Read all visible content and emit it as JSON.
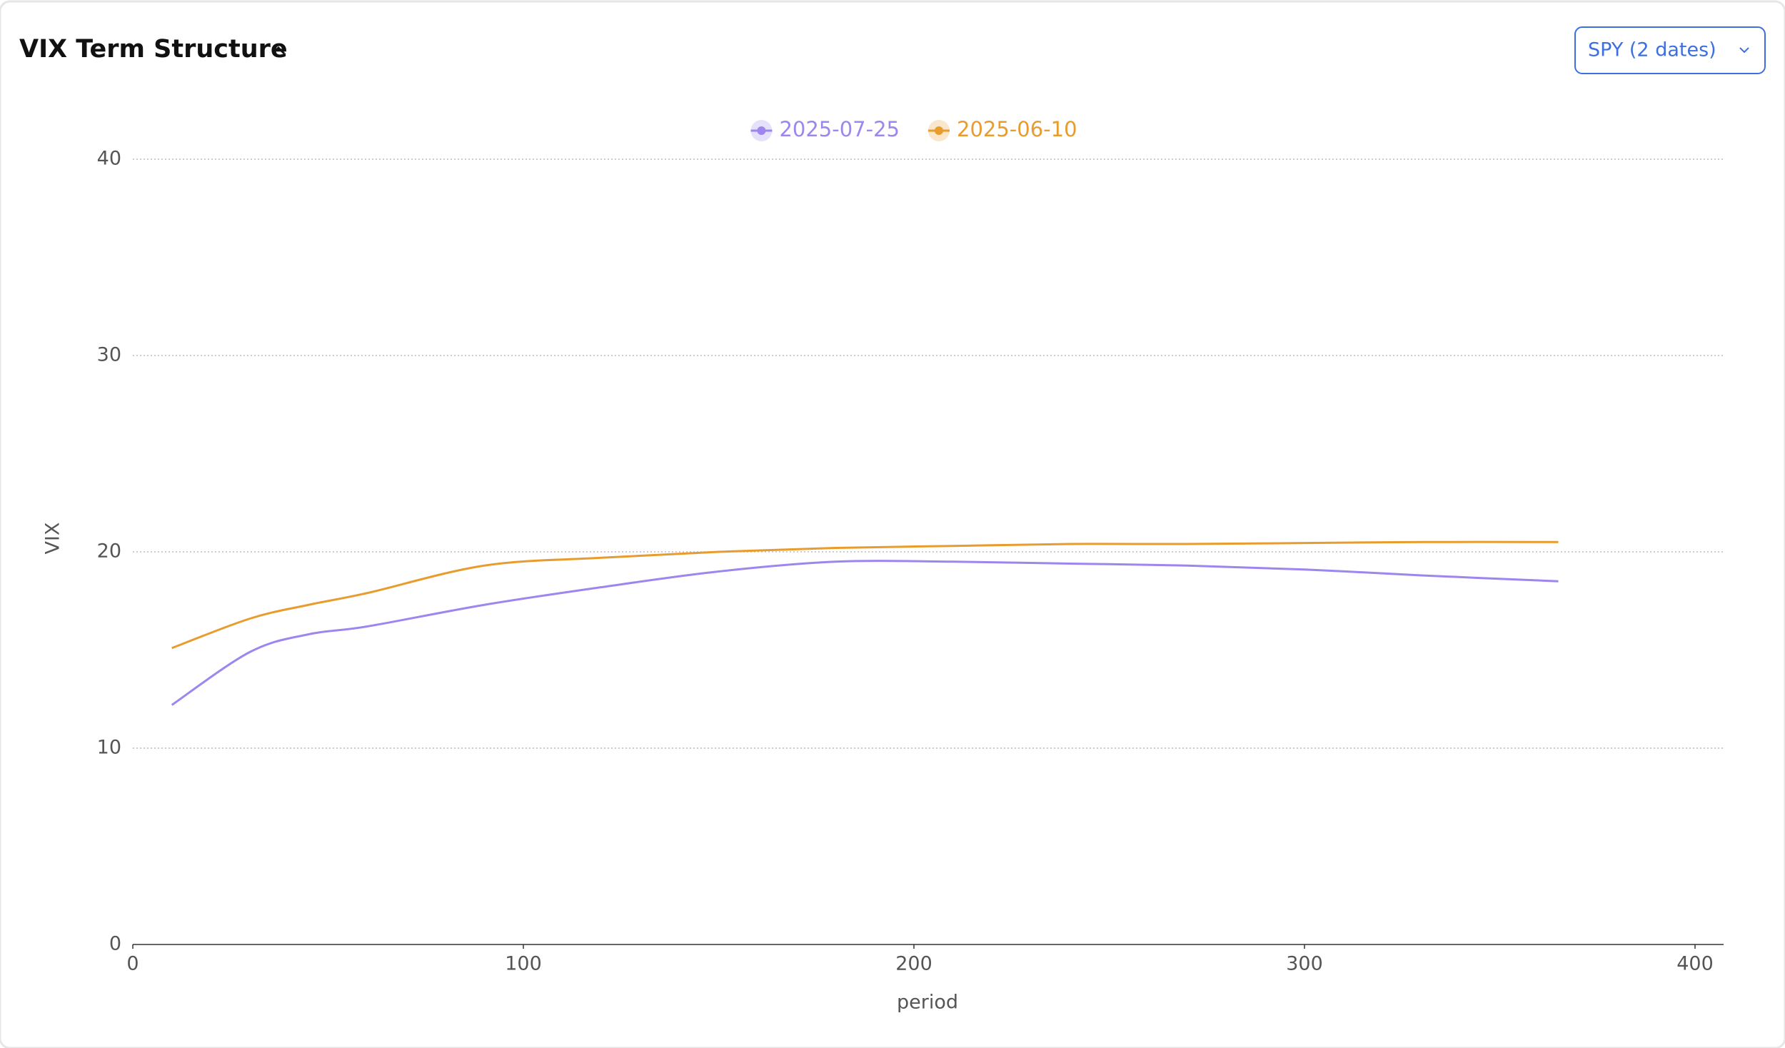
{
  "title": "VIX Term Structure",
  "selector": "SPY (2 dates)",
  "chart_data": {
    "type": "line",
    "xlabel": "period",
    "ylabel": "VIX",
    "x": [
      10,
      30,
      45,
      60,
      90,
      120,
      150,
      180,
      210,
      240,
      270,
      300,
      330,
      365
    ],
    "series": [
      {
        "name": "2025-07-25",
        "color": "#9d86ee",
        "values": [
          12.2,
          14.9,
          15.8,
          16.2,
          17.3,
          18.2,
          19.0,
          19.5,
          19.5,
          19.4,
          19.3,
          19.1,
          18.8,
          18.5
        ]
      },
      {
        "name": "2025-06-10",
        "color": "#e89c2e",
        "values": [
          15.1,
          16.6,
          17.3,
          17.9,
          19.3,
          19.7,
          20.0,
          20.2,
          20.3,
          20.4,
          20.4,
          20.45,
          20.5,
          20.5
        ]
      }
    ],
    "xlim": [
      0,
      400
    ],
    "xticks": [
      0,
      100,
      200,
      300,
      400
    ],
    "ylim": [
      0,
      40
    ],
    "yticks": [
      0,
      10,
      20,
      30,
      40
    ],
    "grid": true,
    "legend": "top"
  }
}
